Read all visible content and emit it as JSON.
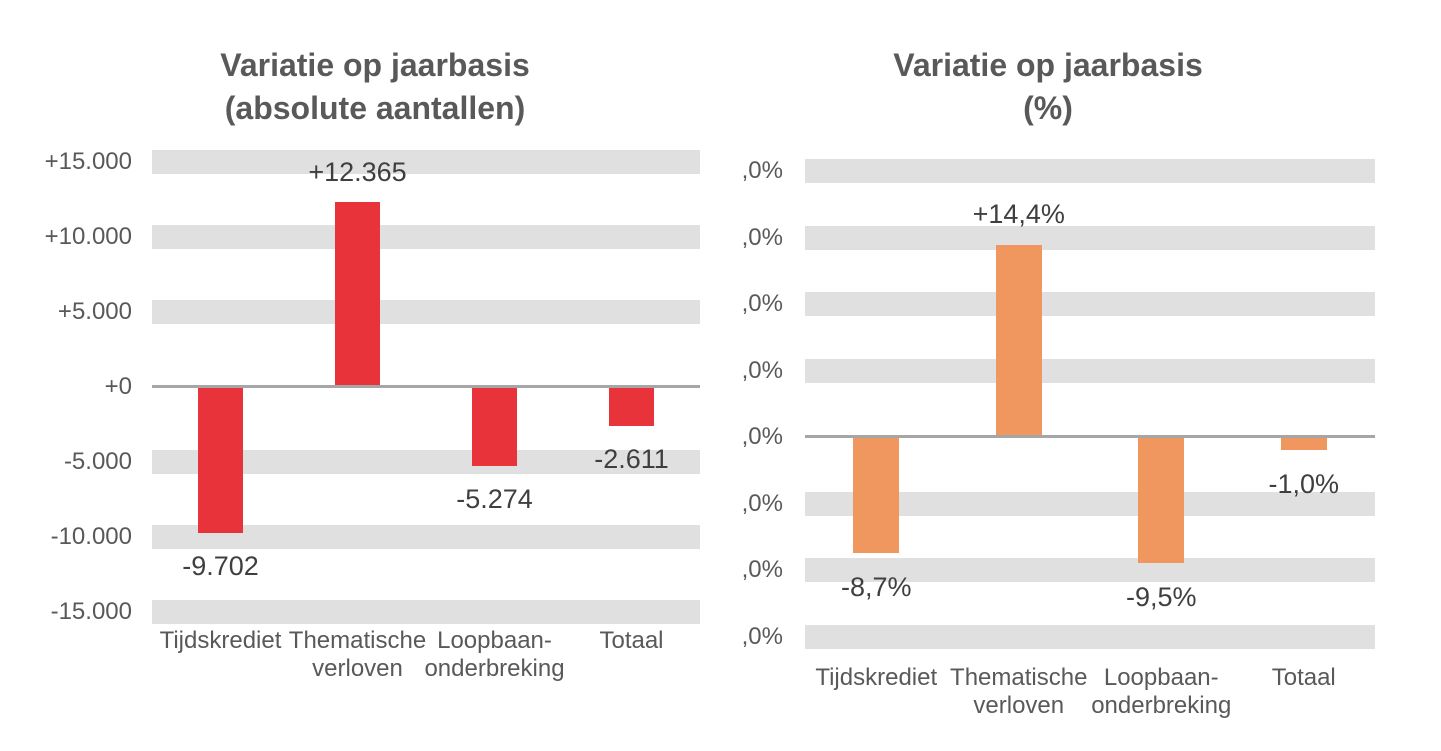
{
  "styles": {
    "background": "#FFFFFF",
    "band_color": "#E0E0E0",
    "zero_line_color": "#A6A6A6",
    "axis_text_color": "#595959",
    "title_text_color": "#595959",
    "data_label_color": "#3F3F3F"
  },
  "chart_data": [
    {
      "type": "bar",
      "title": "Variatie op jaarbasis\n(absolute aantallen)",
      "bar_color": "#E8333B",
      "categories": [
        "Tijdskrediet",
        "Thematische\nverloven",
        "Loopbaan-\nonderbreking",
        "Totaal"
      ],
      "values": [
        -9702,
        12365,
        -5274,
        -2611
      ],
      "data_labels": [
        "-9.702",
        "+12.365",
        "-5.274",
        "-2.611"
      ],
      "y_ticks": [
        {
          "label": "+15.000",
          "value": 15000
        },
        {
          "label": "+10.000",
          "value": 10000
        },
        {
          "label": "+5.000",
          "value": 5000
        },
        {
          "label": "+0",
          "value": 0
        },
        {
          "label": "-5.000",
          "value": -5000
        },
        {
          "label": "-10.000",
          "value": -10000
        },
        {
          "label": "-15.000",
          "value": -15000
        }
      ],
      "ylim": [
        -15000,
        15000
      ],
      "grid": "thick horizontal gray bands at each major tick",
      "legend": "none",
      "xlabel": "",
      "ylabel": ""
    },
    {
      "type": "bar",
      "title": "Variatie op jaarbasis\n(%)",
      "bar_color": "#F0965F",
      "categories": [
        "Tijdskrediet",
        "Thematische\nverloven",
        "Loopbaan-\nonderbreking",
        "Totaal"
      ],
      "values": [
        -8.7,
        14.4,
        -9.5,
        -1.0
      ],
      "data_labels": [
        "-8,7%",
        "+14,4%",
        "-9,5%",
        "-1,0%"
      ],
      "y_ticks": [
        {
          "label": ",0%",
          "value": 20
        },
        {
          "label": ",0%",
          "value": 15
        },
        {
          "label": ",0%",
          "value": 10
        },
        {
          "label": ",0%",
          "value": 5
        },
        {
          "label": ",0%",
          "value": 0
        },
        {
          "label": ",0%",
          "value": -5
        },
        {
          "label": ",0%",
          "value": -10
        },
        {
          "label": ",0%",
          "value": -15
        }
      ],
      "ylim": [
        -15,
        20
      ],
      "grid": "thick horizontal gray bands at each major tick",
      "legend": "none",
      "xlabel": "",
      "ylabel": ""
    }
  ]
}
